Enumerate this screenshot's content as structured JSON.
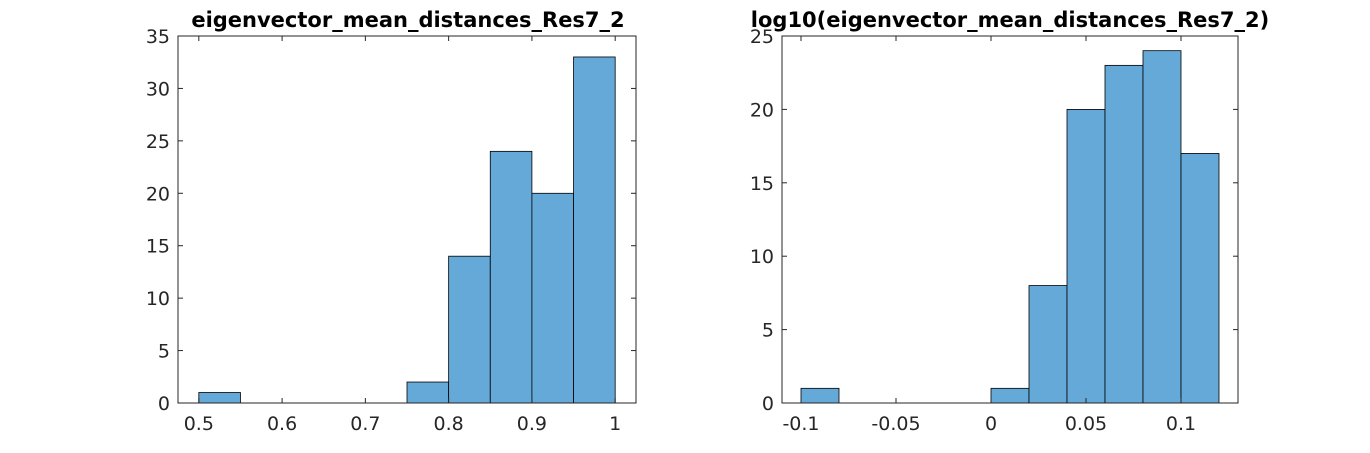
{
  "chart_data": [
    {
      "type": "bar",
      "title": "eigenvector_mean_distances_Res7_2",
      "xlabel": "",
      "ylabel": "",
      "bin_edges": [
        0.5,
        0.55,
        0.6,
        0.65,
        0.7,
        0.75,
        0.8,
        0.85,
        0.9,
        0.95,
        1.0
      ],
      "values": [
        1,
        0,
        0,
        0,
        0,
        2,
        14,
        24,
        20,
        33
      ],
      "xlim": [
        0.475,
        1.025
      ],
      "ylim": [
        0,
        35
      ],
      "xticks": [
        0.5,
        0.6,
        0.7,
        0.8,
        0.9,
        1
      ],
      "xtick_labels": [
        "0.5",
        "0.6",
        "0.7",
        "0.8",
        "0.9",
        "1"
      ],
      "yticks": [
        0,
        5,
        10,
        15,
        20,
        25,
        30,
        35
      ],
      "ytick_labels": [
        "0",
        "5",
        "10",
        "15",
        "20",
        "25",
        "30",
        "35"
      ],
      "grid": false,
      "bar_color": "#65A9D8"
    },
    {
      "type": "bar",
      "title": "log10(eigenvector_mean_distances_Res7_2)",
      "xlabel": "",
      "ylabel": "",
      "bin_edges": [
        -0.1,
        -0.08,
        -0.06,
        -0.04,
        -0.02,
        0,
        0.02,
        0.04,
        0.06,
        0.08,
        0.1,
        0.12
      ],
      "values": [
        1,
        0,
        0,
        0,
        0,
        1,
        8,
        20,
        23,
        24,
        17
      ],
      "xlim": [
        -0.11,
        0.13
      ],
      "ylim": [
        0,
        25
      ],
      "xticks": [
        -0.1,
        -0.05,
        0,
        0.05,
        0.1
      ],
      "xtick_labels": [
        "-0.1",
        "-0.05",
        "0",
        "0.05",
        "0.1"
      ],
      "yticks": [
        0,
        5,
        10,
        15,
        20,
        25
      ],
      "ytick_labels": [
        "0",
        "5",
        "10",
        "15",
        "20",
        "25"
      ],
      "grid": false,
      "bar_color": "#65A9D8"
    }
  ]
}
